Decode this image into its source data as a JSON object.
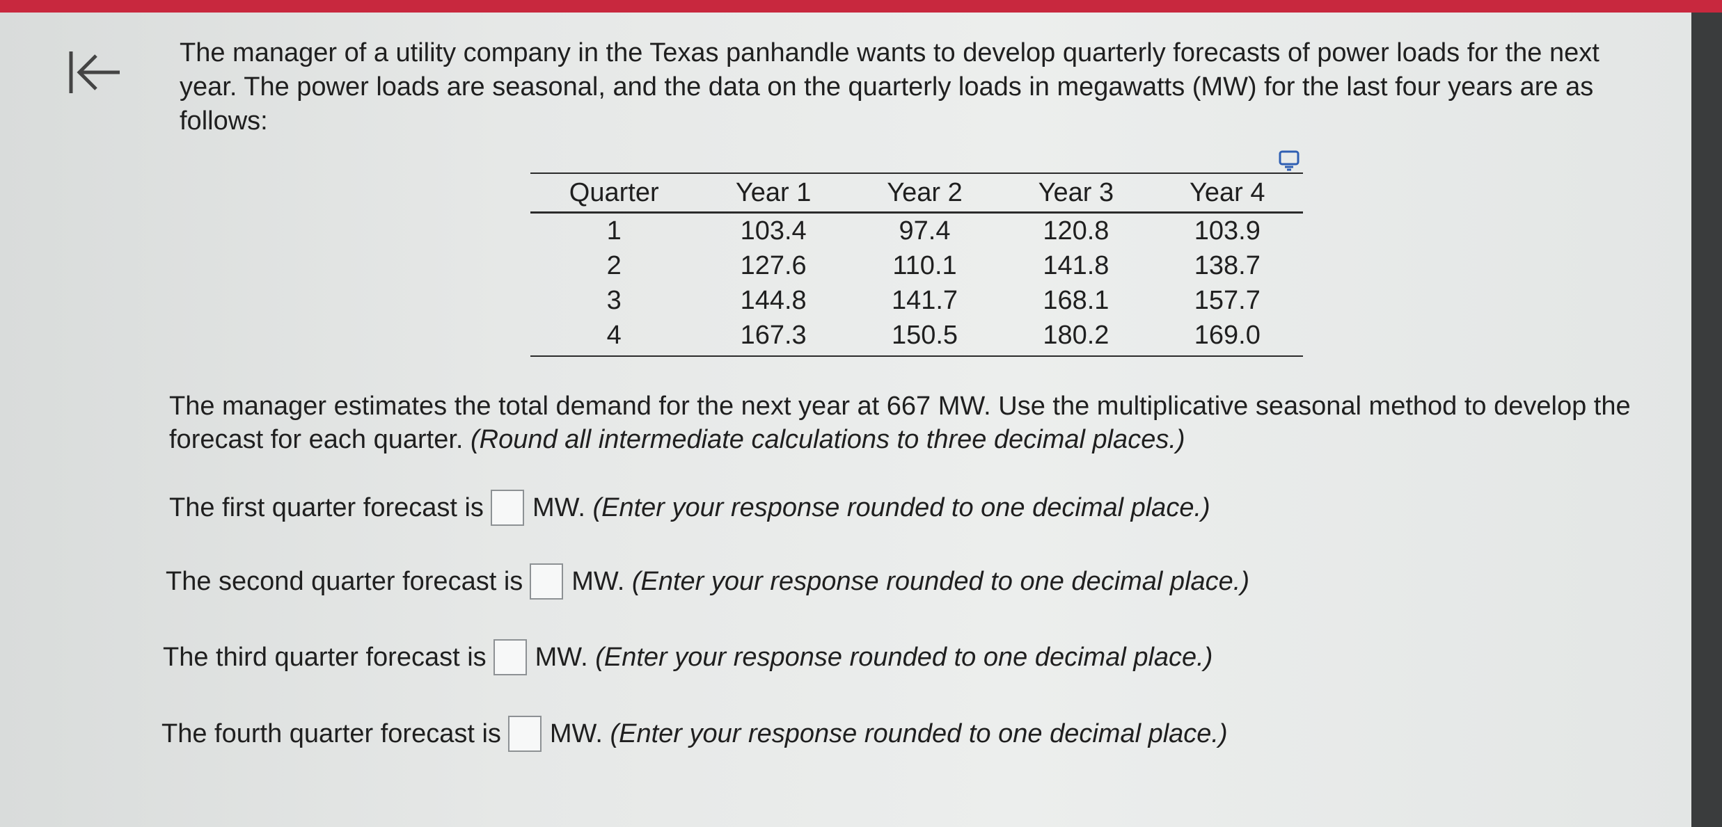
{
  "nav": {
    "back_icon": "back-to-start-icon"
  },
  "problem": {
    "intro": "The manager of a utility company in the Texas panhandle wants to develop quarterly forecasts of power loads for the next year. The power loads are seasonal, and the data on the quarterly loads in megawatts (MW) for the last four years are as follows:",
    "task_main": "The manager estimates the total demand for the next year at 667 MW. Use the multiplicative seasonal method to develop the forecast for each quarter.",
    "task_note": "(Round all intermediate calculations to three decimal places.)"
  },
  "table": {
    "expand_icon": "expand-table-icon",
    "headers": [
      "Quarter",
      "Year 1",
      "Year 2",
      "Year 3",
      "Year 4"
    ],
    "rows": [
      [
        "1",
        "103.4",
        "97.4",
        "120.8",
        "103.9"
      ],
      [
        "2",
        "127.6",
        "110.1",
        "141.8",
        "138.7"
      ],
      [
        "3",
        "144.8",
        "141.7",
        "168.1",
        "157.7"
      ],
      [
        "4",
        "167.3",
        "150.5",
        "180.2",
        "169.0"
      ]
    ]
  },
  "answers": [
    {
      "prefix": "The first quarter forecast is",
      "unit": "MW.",
      "note": "(Enter your response rounded to one decimal place.)",
      "value": ""
    },
    {
      "prefix": "The second quarter forecast is",
      "unit": "MW.",
      "note": "(Enter your response rounded to one decimal place.)",
      "value": ""
    },
    {
      "prefix": "The third quarter forecast is",
      "unit": "MW.",
      "note": "(Enter your response rounded to one decimal place.)",
      "value": ""
    },
    {
      "prefix": "The fourth quarter forecast is",
      "unit": "MW.",
      "note": "(Enter your response rounded to one decimal place.)",
      "value": ""
    }
  ]
}
